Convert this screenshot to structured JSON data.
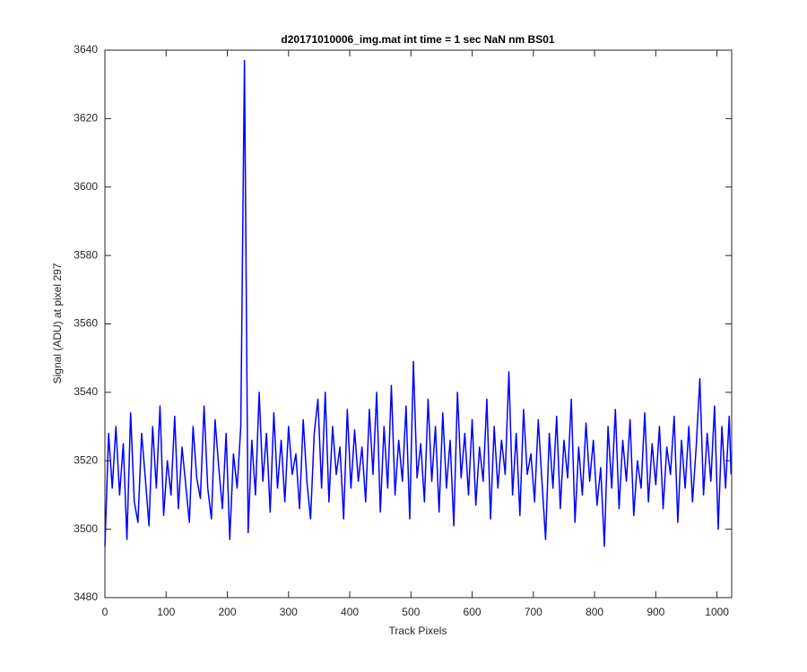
{
  "chart_data": {
    "type": "line",
    "title": "d20171010006_img.mat int time = 1 sec  NaN nm BS01",
    "x_label": "Track Pixels",
    "y_label": "Signal (ADU) at pixel 297",
    "x": [
      0,
      6,
      12,
      18,
      24,
      30,
      36,
      42,
      48,
      54,
      60,
      66,
      72,
      78,
      84,
      90,
      96,
      102,
      108,
      114,
      120,
      126,
      132,
      138,
      144,
      150,
      156,
      162,
      168,
      174,
      180,
      186,
      192,
      198,
      204,
      210,
      216,
      222,
      228,
      234,
      240,
      246,
      252,
      258,
      264,
      270,
      276,
      282,
      288,
      294,
      300,
      306,
      312,
      318,
      324,
      330,
      336,
      342,
      348,
      354,
      360,
      366,
      372,
      378,
      384,
      390,
      396,
      402,
      408,
      414,
      420,
      426,
      432,
      438,
      444,
      450,
      456,
      462,
      468,
      474,
      480,
      486,
      492,
      498,
      504,
      510,
      516,
      522,
      528,
      534,
      540,
      546,
      552,
      558,
      564,
      570,
      576,
      582,
      588,
      594,
      600,
      606,
      612,
      618,
      624,
      630,
      636,
      642,
      648,
      654,
      660,
      666,
      672,
      678,
      684,
      690,
      696,
      702,
      708,
      714,
      720,
      726,
      732,
      738,
      744,
      750,
      756,
      762,
      768,
      774,
      780,
      786,
      792,
      798,
      804,
      810,
      816,
      822,
      828,
      834,
      840,
      846,
      852,
      858,
      864,
      870,
      876,
      882,
      888,
      894,
      900,
      906,
      912,
      918,
      924,
      930,
      936,
      942,
      948,
      954,
      960,
      966,
      972,
      978,
      984,
      990,
      996,
      1002,
      1008,
      1014,
      1020,
      1023
    ],
    "series": [
      {
        "name": "Signal",
        "color": "#0000ff",
        "values": [
          3495,
          3528,
          3512,
          3530,
          3510,
          3525,
          3497,
          3534,
          3508,
          3502,
          3528,
          3515,
          3501,
          3530,
          3512,
          3536,
          3504,
          3520,
          3510,
          3533,
          3506,
          3524,
          3513,
          3502,
          3530,
          3515,
          3509,
          3536,
          3512,
          3503,
          3532,
          3518,
          3506,
          3528,
          3497,
          3522,
          3512,
          3530,
          3637,
          3499,
          3526,
          3510,
          3540,
          3514,
          3528,
          3505,
          3534,
          3512,
          3526,
          3508,
          3530,
          3516,
          3522,
          3506,
          3532,
          3514,
          3503,
          3528,
          3538,
          3512,
          3540,
          3508,
          3530,
          3516,
          3524,
          3503,
          3535,
          3512,
          3529,
          3514,
          3524,
          3508,
          3535,
          3516,
          3540,
          3505,
          3530,
          3512,
          3542,
          3510,
          3526,
          3514,
          3536,
          3503,
          3549,
          3515,
          3525,
          3508,
          3538,
          3514,
          3530,
          3505,
          3534,
          3512,
          3526,
          3501,
          3540,
          3515,
          3528,
          3510,
          3532,
          3507,
          3524,
          3514,
          3538,
          3503,
          3530,
          3512,
          3526,
          3516,
          3546,
          3510,
          3528,
          3504,
          3535,
          3516,
          3522,
          3508,
          3532,
          3514,
          3497,
          3528,
          3512,
          3533,
          3506,
          3526,
          3515,
          3538,
          3502,
          3524,
          3510,
          3531,
          3514,
          3526,
          3507,
          3518,
          3495,
          3530,
          3512,
          3535,
          3506,
          3526,
          3514,
          3532,
          3504,
          3520,
          3512,
          3534,
          3508,
          3525,
          3513,
          3530,
          3506,
          3524,
          3516,
          3533,
          3502,
          3526,
          3512,
          3530,
          3508,
          3524,
          3544,
          3510,
          3528,
          3514,
          3536,
          3500,
          3530,
          3512,
          3533,
          3516
        ]
      }
    ],
    "xlim": [
      0,
      1024
    ],
    "ylim": [
      3480,
      3640
    ],
    "xticks": [
      0,
      100,
      200,
      300,
      400,
      500,
      600,
      700,
      800,
      900,
      1000
    ],
    "yticks": [
      3480,
      3500,
      3520,
      3540,
      3560,
      3580,
      3600,
      3620,
      3640
    ],
    "grid": false
  }
}
